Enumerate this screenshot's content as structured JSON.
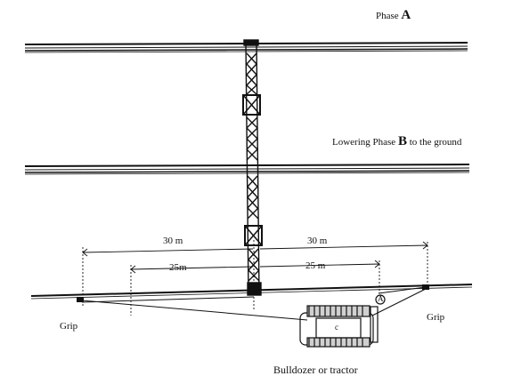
{
  "labels": {
    "phase_a_prefix": "Phase ",
    "phase_a_letter": "A",
    "phase_b_prefix": "Lowering Phase ",
    "phase_b_letter": "B",
    "phase_b_suffix": " to the ground",
    "dim_30m_left": "30 m",
    "dim_30m_right": "30 m",
    "dim_25m_left": "25m",
    "dim_25m_right": "25 m",
    "grip_left": "Grip",
    "grip_right": "Grip",
    "bulldozer": "Bulldozer or tractor",
    "anchor_marker": "A",
    "tractor_mark": "c"
  }
}
